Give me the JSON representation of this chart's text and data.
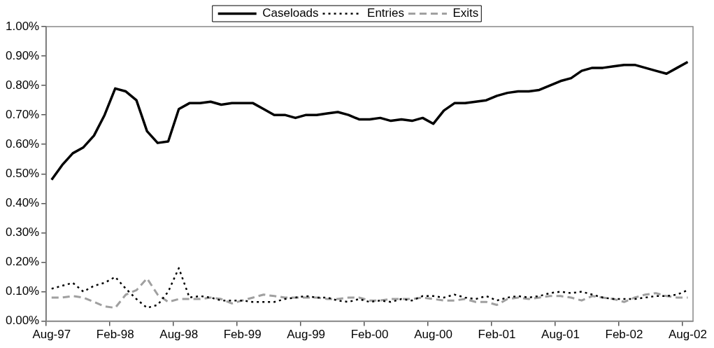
{
  "chart_data": {
    "type": "line",
    "categories": [
      "Aug-97",
      null,
      null,
      null,
      null,
      null,
      "Feb-98",
      null,
      null,
      null,
      null,
      null,
      "Aug-98",
      null,
      null,
      null,
      null,
      null,
      "Feb-99",
      null,
      null,
      null,
      null,
      null,
      "Aug-99",
      null,
      null,
      null,
      null,
      null,
      "Feb-00",
      null,
      null,
      null,
      null,
      null,
      "Aug-00",
      null,
      null,
      null,
      null,
      null,
      "Feb-01",
      null,
      null,
      null,
      null,
      null,
      "Aug-01",
      null,
      null,
      null,
      null,
      null,
      "Feb-02",
      null,
      null,
      null,
      null,
      null,
      "Aug-02"
    ],
    "series": [
      {
        "name": "Caseloads",
        "color": "#000000",
        "line_style": "solid",
        "values": [
          0.48,
          0.53,
          0.57,
          0.59,
          0.63,
          0.7,
          0.79,
          0.78,
          0.75,
          0.645,
          0.605,
          0.61,
          0.72,
          0.74,
          0.74,
          0.745,
          0.735,
          0.74,
          0.74,
          0.74,
          0.72,
          0.7,
          0.7,
          0.69,
          0.7,
          0.7,
          0.705,
          0.71,
          0.7,
          0.685,
          0.685,
          0.69,
          0.68,
          0.685,
          0.68,
          0.69,
          0.67,
          0.715,
          0.74,
          0.74,
          0.745,
          0.75,
          0.765,
          0.775,
          0.78,
          0.78,
          0.785,
          0.8,
          0.815,
          0.825,
          0.85,
          0.86,
          0.86,
          0.865,
          0.87,
          0.87,
          0.86,
          0.85,
          0.84,
          0.86,
          0.88
        ]
      },
      {
        "name": "Entries",
        "color": "#000000",
        "line_style": "dotted",
        "values": [
          0.11,
          0.12,
          0.13,
          0.1,
          0.12,
          0.13,
          0.15,
          0.11,
          0.075,
          0.045,
          0.055,
          0.1,
          0.18,
          0.08,
          0.085,
          0.08,
          0.07,
          0.07,
          0.07,
          0.065,
          0.065,
          0.065,
          0.075,
          0.08,
          0.085,
          0.08,
          0.08,
          0.07,
          0.065,
          0.075,
          0.065,
          0.07,
          0.065,
          0.075,
          0.07,
          0.085,
          0.085,
          0.08,
          0.09,
          0.08,
          0.075,
          0.085,
          0.07,
          0.08,
          0.085,
          0.08,
          0.085,
          0.095,
          0.1,
          0.095,
          0.1,
          0.09,
          0.08,
          0.075,
          0.075,
          0.075,
          0.08,
          0.085,
          0.085,
          0.09,
          0.105
        ]
      },
      {
        "name": "Exits",
        "color": "#a0a0a0",
        "line_style": "dashed",
        "values": [
          0.08,
          0.08,
          0.085,
          0.08,
          0.065,
          0.05,
          0.045,
          0.09,
          0.105,
          0.145,
          0.09,
          0.065,
          0.075,
          0.075,
          0.075,
          0.08,
          0.075,
          0.06,
          0.07,
          0.08,
          0.09,
          0.085,
          0.08,
          0.08,
          0.08,
          0.08,
          0.075,
          0.075,
          0.08,
          0.08,
          0.07,
          0.07,
          0.075,
          0.075,
          0.075,
          0.08,
          0.075,
          0.07,
          0.07,
          0.075,
          0.065,
          0.065,
          0.055,
          0.075,
          0.08,
          0.075,
          0.08,
          0.085,
          0.085,
          0.08,
          0.07,
          0.085,
          0.08,
          0.075,
          0.065,
          0.08,
          0.09,
          0.095,
          0.085,
          0.08,
          0.08
        ]
      }
    ],
    "ylim": [
      0,
      1
    ],
    "yticks": [
      {
        "value": 0,
        "label": "0.00%"
      },
      {
        "value": 0.1,
        "label": "0.10%"
      },
      {
        "value": 0.2,
        "label": "0.20%"
      },
      {
        "value": 0.3,
        "label": "0.30%"
      },
      {
        "value": 0.4,
        "label": "0.40%"
      },
      {
        "value": 0.5,
        "label": "0.50%"
      },
      {
        "value": 0.6,
        "label": "0.60%"
      },
      {
        "value": 0.7,
        "label": "0.70%"
      },
      {
        "value": 0.8,
        "label": "0.80%"
      },
      {
        "value": 0.9,
        "label": "0.90%"
      },
      {
        "value": 1,
        "label": "1.00%"
      }
    ],
    "grid": false,
    "legend": "top",
    "marker": "none"
  }
}
